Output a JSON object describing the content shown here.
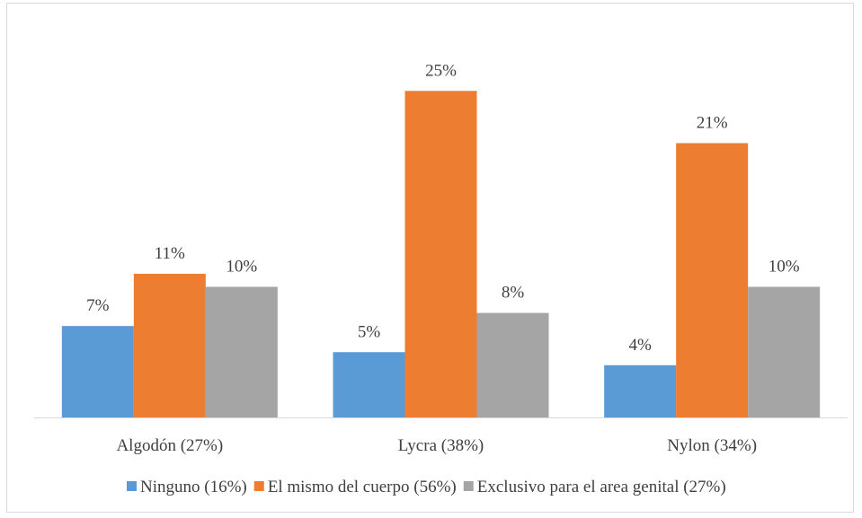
{
  "chart_data": {
    "type": "bar",
    "title": "",
    "xlabel": "",
    "ylabel": "",
    "ylim": [
      0,
      28
    ],
    "grid": false,
    "legend_position": "bottom",
    "categories": [
      "Algodón (27%)",
      "Lycra (38%)",
      "Nylon (34%)"
    ],
    "series": [
      {
        "name": "Ninguno (16%)",
        "color": "#5b9bd5",
        "values": [
          7,
          5,
          4
        ],
        "labels": [
          "7%",
          "5%",
          "4%"
        ]
      },
      {
        "name": "El mismo del cuerpo (56%)",
        "color": "#ed7d31",
        "values": [
          11,
          25,
          21
        ],
        "labels": [
          "11%",
          "25%",
          "21%"
        ]
      },
      {
        "name": "Exclusivo para el area genital (27%)",
        "color": "#a5a5a5",
        "values": [
          10,
          8,
          10
        ],
        "labels": [
          "10%",
          "8%",
          "10%"
        ]
      }
    ]
  }
}
